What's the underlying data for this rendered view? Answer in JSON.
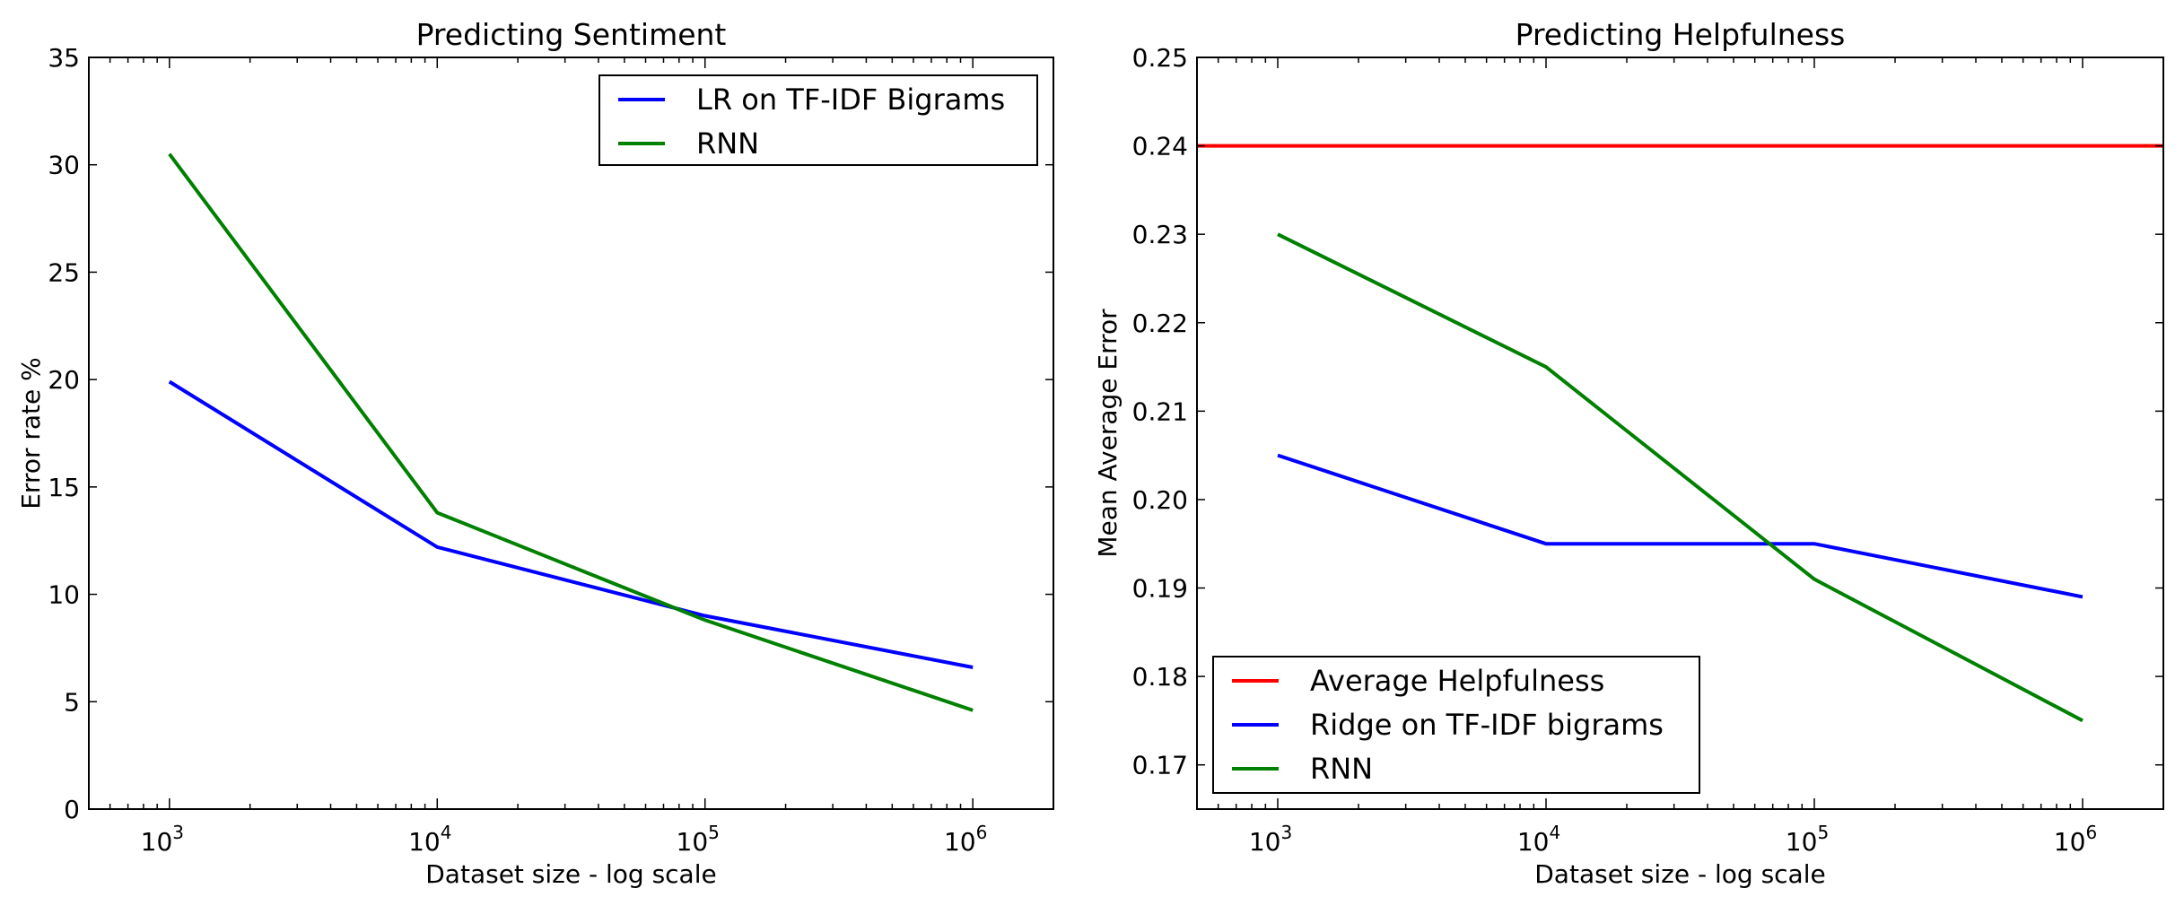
{
  "chart_data": [
    {
      "type": "line",
      "title": "Predicting Sentiment",
      "xlabel": "Dataset size - log scale",
      "ylabel": "Error rate %",
      "xscale": "log",
      "xlim": [
        500,
        2000000
      ],
      "ylim": [
        0,
        35
      ],
      "xticks": [
        1000,
        10000,
        100000,
        1000000
      ],
      "xtick_labels": [
        {
          "base": "10",
          "exp": "3"
        },
        {
          "base": "10",
          "exp": "4"
        },
        {
          "base": "10",
          "exp": "5"
        },
        {
          "base": "10",
          "exp": "6"
        }
      ],
      "yticks": [
        0,
        5,
        10,
        15,
        20,
        25,
        30,
        35
      ],
      "ytick_labels": [
        "0",
        "5",
        "10",
        "15",
        "20",
        "25",
        "30",
        "35"
      ],
      "legend_position": "top-right",
      "series": [
        {
          "name": "LR on TF-IDF Bigrams",
          "color": "#0000ff",
          "x": [
            1000,
            10000,
            100000,
            1000000
          ],
          "y": [
            19.9,
            12.2,
            9.0,
            6.6
          ]
        },
        {
          "name": "RNN",
          "color": "#008000",
          "x": [
            1000,
            10000,
            100000,
            1000000
          ],
          "y": [
            30.5,
            13.8,
            8.8,
            4.6
          ]
        }
      ]
    },
    {
      "type": "line",
      "title": "Predicting Helpfulness",
      "xlabel": "Dataset size - log scale",
      "ylabel": "Mean Average Error",
      "xscale": "log",
      "xlim": [
        500,
        2000000
      ],
      "ylim": [
        0.165,
        0.25
      ],
      "xticks": [
        1000,
        10000,
        100000,
        1000000
      ],
      "xtick_labels": [
        {
          "base": "10",
          "exp": "3"
        },
        {
          "base": "10",
          "exp": "4"
        },
        {
          "base": "10",
          "exp": "5"
        },
        {
          "base": "10",
          "exp": "6"
        }
      ],
      "yticks": [
        0.17,
        0.18,
        0.19,
        0.2,
        0.21,
        0.22,
        0.23,
        0.24,
        0.25
      ],
      "ytick_labels": [
        "0.17",
        "0.18",
        "0.19",
        "0.20",
        "0.21",
        "0.22",
        "0.23",
        "0.24",
        "0.25"
      ],
      "legend_position": "bottom-left",
      "series": [
        {
          "name": "Average Helpfulness",
          "color": "#ff0000",
          "x": [
            500,
            2000000
          ],
          "y": [
            0.24,
            0.24
          ]
        },
        {
          "name": "Ridge on TF-IDF bigrams",
          "color": "#0000ff",
          "x": [
            1000,
            10000,
            100000,
            1000000
          ],
          "y": [
            0.205,
            0.195,
            0.195,
            0.189
          ]
        },
        {
          "name": "RNN",
          "color": "#008000",
          "x": [
            1000,
            10000,
            100000,
            1000000
          ],
          "y": [
            0.23,
            0.215,
            0.191,
            0.175
          ]
        }
      ]
    }
  ]
}
